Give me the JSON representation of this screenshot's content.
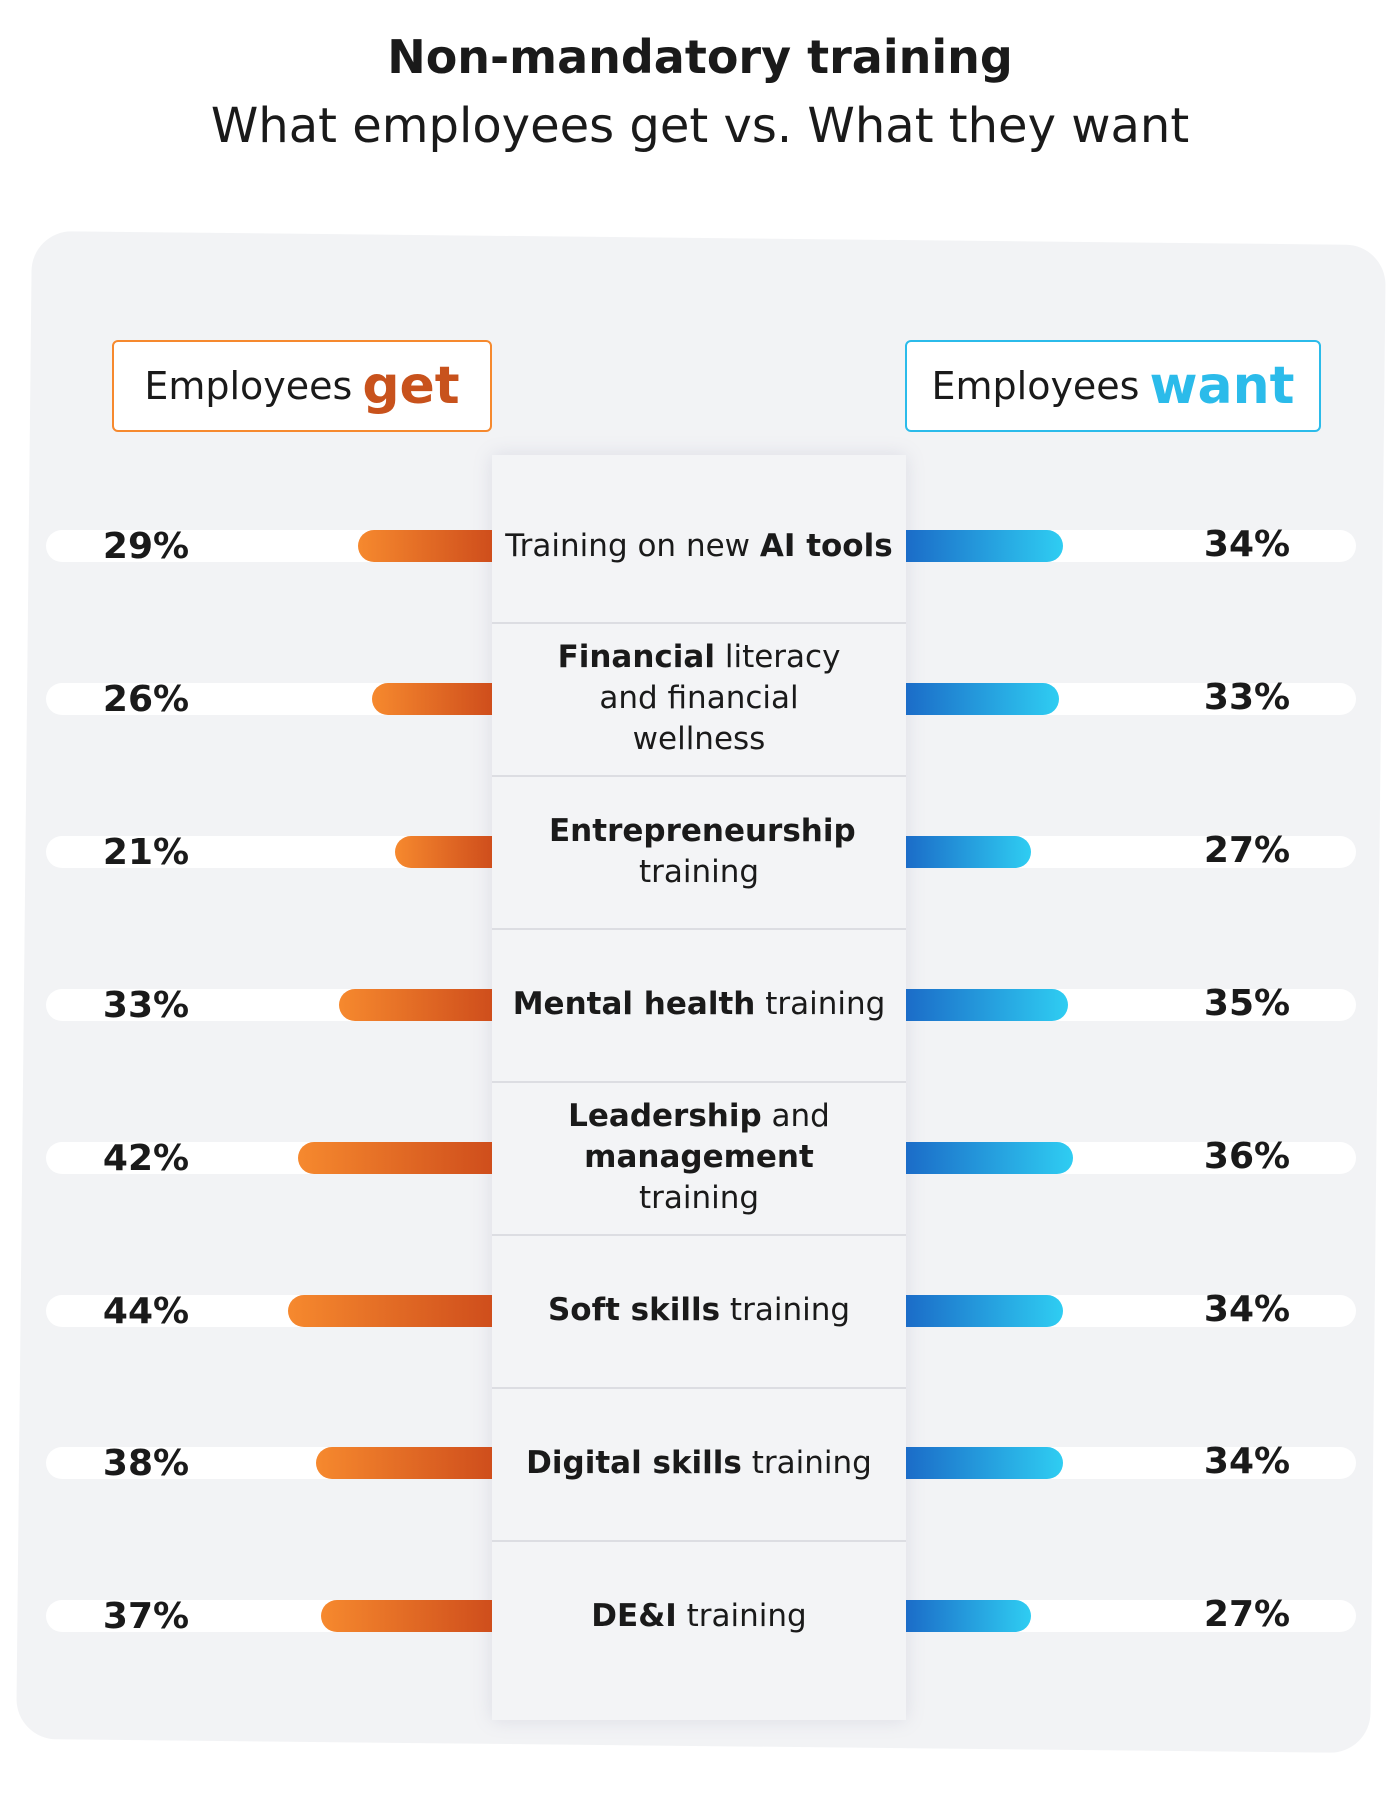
{
  "chart_data": {
    "type": "butterfly",
    "title": "Non-mandatory training",
    "subtitle": "What employees get vs. What they want",
    "categories": [
      [
        {
          "text": "Training on new ",
          "bold": false
        },
        {
          "text": "AI tools",
          "bold": true
        }
      ],
      [
        {
          "text": "Financial",
          "bold": true
        },
        {
          "text": " literacy and financial wellness",
          "bold": false
        }
      ],
      [
        {
          "text": "Entrepreneurship",
          "bold": true
        },
        {
          "text": " training",
          "bold": false
        }
      ],
      [
        {
          "text": "Mental health",
          "bold": true
        },
        {
          "text": " training",
          "bold": false
        }
      ],
      [
        {
          "text": "Leadership",
          "bold": true
        },
        {
          "text": " and ",
          "bold": false
        },
        {
          "text": "management",
          "bold": true
        },
        {
          "text": " training",
          "bold": false
        }
      ],
      [
        {
          "text": "Soft skills",
          "bold": true
        },
        {
          "text": " training",
          "bold": false
        }
      ],
      [
        {
          "text": "Digital skills",
          "bold": true
        },
        {
          "text": " training",
          "bold": false
        }
      ],
      [
        {
          "text": "DE&I",
          "bold": true
        },
        {
          "text": " training",
          "bold": false
        }
      ]
    ],
    "series": [
      {
        "name": "Employees get",
        "color": "#c8521c",
        "gradient": [
          "#f6892e",
          "#cf4e1c"
        ],
        "values": [
          29,
          26,
          21,
          33,
          42,
          44,
          38,
          37
        ],
        "value_labels": [
          "29%",
          "26%",
          "21%",
          "33%",
          "42%",
          "44%",
          "38%",
          "37%"
        ]
      },
      {
        "name": "Employees want",
        "color": "#2bbbea",
        "gradient": [
          "#1b6cc8",
          "#2fcdf2"
        ],
        "values": [
          34,
          33,
          27,
          35,
          36,
          34,
          34,
          27
        ],
        "value_labels": [
          "34%",
          "33%",
          "27%",
          "35%",
          "36%",
          "34%",
          "34%",
          "27%"
        ]
      }
    ]
  }
}
